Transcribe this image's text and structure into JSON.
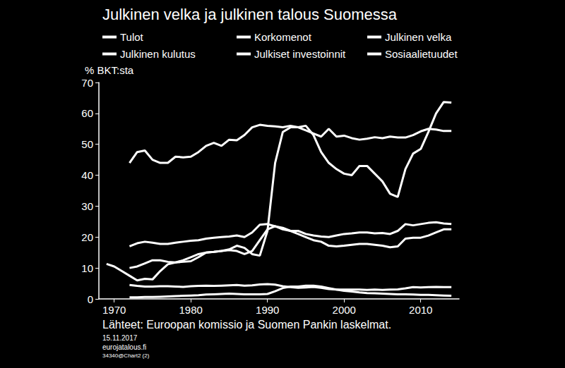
{
  "chart_data": {
    "type": "line",
    "title": "Julkinen velka ja julkinen talous Suomessa",
    "ylabel": "% BKT:sta",
    "annotations": [
      "Lähteet: Euroopan komissio ja Suomen Pankin laskelmat.",
      "15.11.2017",
      "eurojatalous.fi",
      "34340@Chart2 (2)"
    ],
    "legend": "top",
    "grid": false,
    "xlim": [
      1968,
      2015
    ],
    "xticks": [
      1970,
      1980,
      1990,
      2000,
      2010
    ],
    "ylim": [
      0,
      70
    ],
    "yticks": [
      0,
      10,
      20,
      30,
      40,
      50,
      60,
      70
    ],
    "x": [
      1969,
      1970,
      1971,
      1972,
      1973,
      1974,
      1975,
      1976,
      1977,
      1978,
      1979,
      1980,
      1981,
      1982,
      1983,
      1984,
      1985,
      1986,
      1987,
      1988,
      1989,
      1990,
      1991,
      1992,
      1993,
      1994,
      1995,
      1996,
      1997,
      1998,
      1999,
      2000,
      2001,
      2002,
      2003,
      2004,
      2005,
      2006,
      2007,
      2008,
      2009,
      2010,
      2011,
      2012,
      2013,
      2014
    ],
    "series": [
      {
        "name": "Tulot",
        "color": "#ffffff",
        "values": [
          null,
          null,
          null,
          44,
          47.5,
          48,
          45,
          44,
          44,
          46,
          45.8,
          46,
          47.5,
          49.5,
          50.5,
          49.5,
          51.5,
          51.3,
          53,
          55.5,
          56.3,
          56,
          55.8,
          55.5,
          56,
          55.5,
          54.5,
          53.5,
          52.5,
          55,
          52.5,
          52.8,
          52,
          51.5,
          51.8,
          52.3,
          52,
          52.5,
          52.2,
          52.2,
          53,
          54.2,
          55,
          54.8,
          54.3,
          54.3
        ]
      },
      {
        "name": "Korkomenot",
        "color": "#ffffff",
        "values": [
          null,
          null,
          null,
          0.5,
          0.5,
          0.6,
          0.6,
          0.7,
          0.8,
          0.9,
          1,
          1.1,
          1.2,
          1.4,
          1.5,
          1.6,
          1.7,
          1.6,
          1.5,
          1.5,
          1.5,
          1.6,
          2.5,
          3.5,
          4,
          4,
          4.3,
          4.3,
          4,
          3.5,
          3,
          2.6,
          2.4,
          2.1,
          1.9,
          1.8,
          1.7,
          1.6,
          1.5,
          1.5,
          1.4,
          1.3,
          1.3,
          1.2,
          1.1,
          1
        ]
      },
      {
        "name": "Julkinen velka",
        "color": "#ffffff",
        "values": [
          11.3,
          10.5,
          9,
          7.5,
          6,
          6.5,
          6.3,
          9,
          11.2,
          11.8,
          12,
          12.2,
          13.5,
          15,
          15.2,
          15.5,
          16,
          17.2,
          16.5,
          14.5,
          14,
          22,
          44,
          54,
          55.5,
          55.5,
          56,
          53,
          47.5,
          44,
          42,
          40.5,
          40,
          43,
          43,
          40.5,
          38,
          34,
          33,
          42,
          47,
          48.5,
          54,
          60,
          63.7,
          63.5
        ]
      },
      {
        "name": "Julkinen kulutus",
        "color": "#ffffff",
        "values": [
          null,
          null,
          null,
          17,
          18,
          18.5,
          18.2,
          17.8,
          17.8,
          18.2,
          18.5,
          18.8,
          19,
          19.5,
          19.8,
          20,
          20.2,
          20.5,
          20,
          21.5,
          24,
          24.2,
          23.5,
          22.5,
          22,
          22,
          21,
          20.5,
          20.2,
          20,
          20.5,
          21,
          21.2,
          21.5,
          21.5,
          21.2,
          21.3,
          21,
          22,
          24.2,
          23.8,
          24.2,
          24.6,
          24.8,
          24.4,
          24.2
        ]
      },
      {
        "name": "Julkiset investoinnit",
        "color": "#ffffff",
        "values": [
          null,
          null,
          null,
          4.5,
          4.2,
          4,
          4,
          4.1,
          4.1,
          4,
          3.9,
          4.1,
          4.2,
          4.3,
          4.2,
          4.3,
          4.4,
          4.5,
          4.3,
          4.4,
          4.7,
          4.8,
          4.6,
          4.1,
          3.8,
          3.6,
          3.7,
          3.9,
          3.6,
          3.2,
          3,
          3,
          3,
          3,
          2.9,
          3,
          2.9,
          3,
          3.1,
          3.4,
          3.8,
          3.7,
          3.8,
          3.9,
          3.8,
          3.8
        ]
      },
      {
        "name": "Sosiaalietuudet",
        "color": "#ffffff",
        "values": [
          null,
          null,
          null,
          10,
          10.5,
          11.5,
          12.5,
          12.5,
          12,
          11.8,
          12.5,
          13.5,
          14.5,
          15,
          15.2,
          15.5,
          15.8,
          15.5,
          14.5,
          15.5,
          19,
          22.5,
          23.5,
          23,
          22,
          21,
          20,
          19,
          18.5,
          17.2,
          17,
          17.2,
          17.5,
          17.8,
          17.8,
          17.5,
          17.2,
          16.7,
          17,
          19.5,
          19.8,
          19.8,
          20.5,
          21.5,
          22.5,
          22.5
        ]
      }
    ]
  }
}
